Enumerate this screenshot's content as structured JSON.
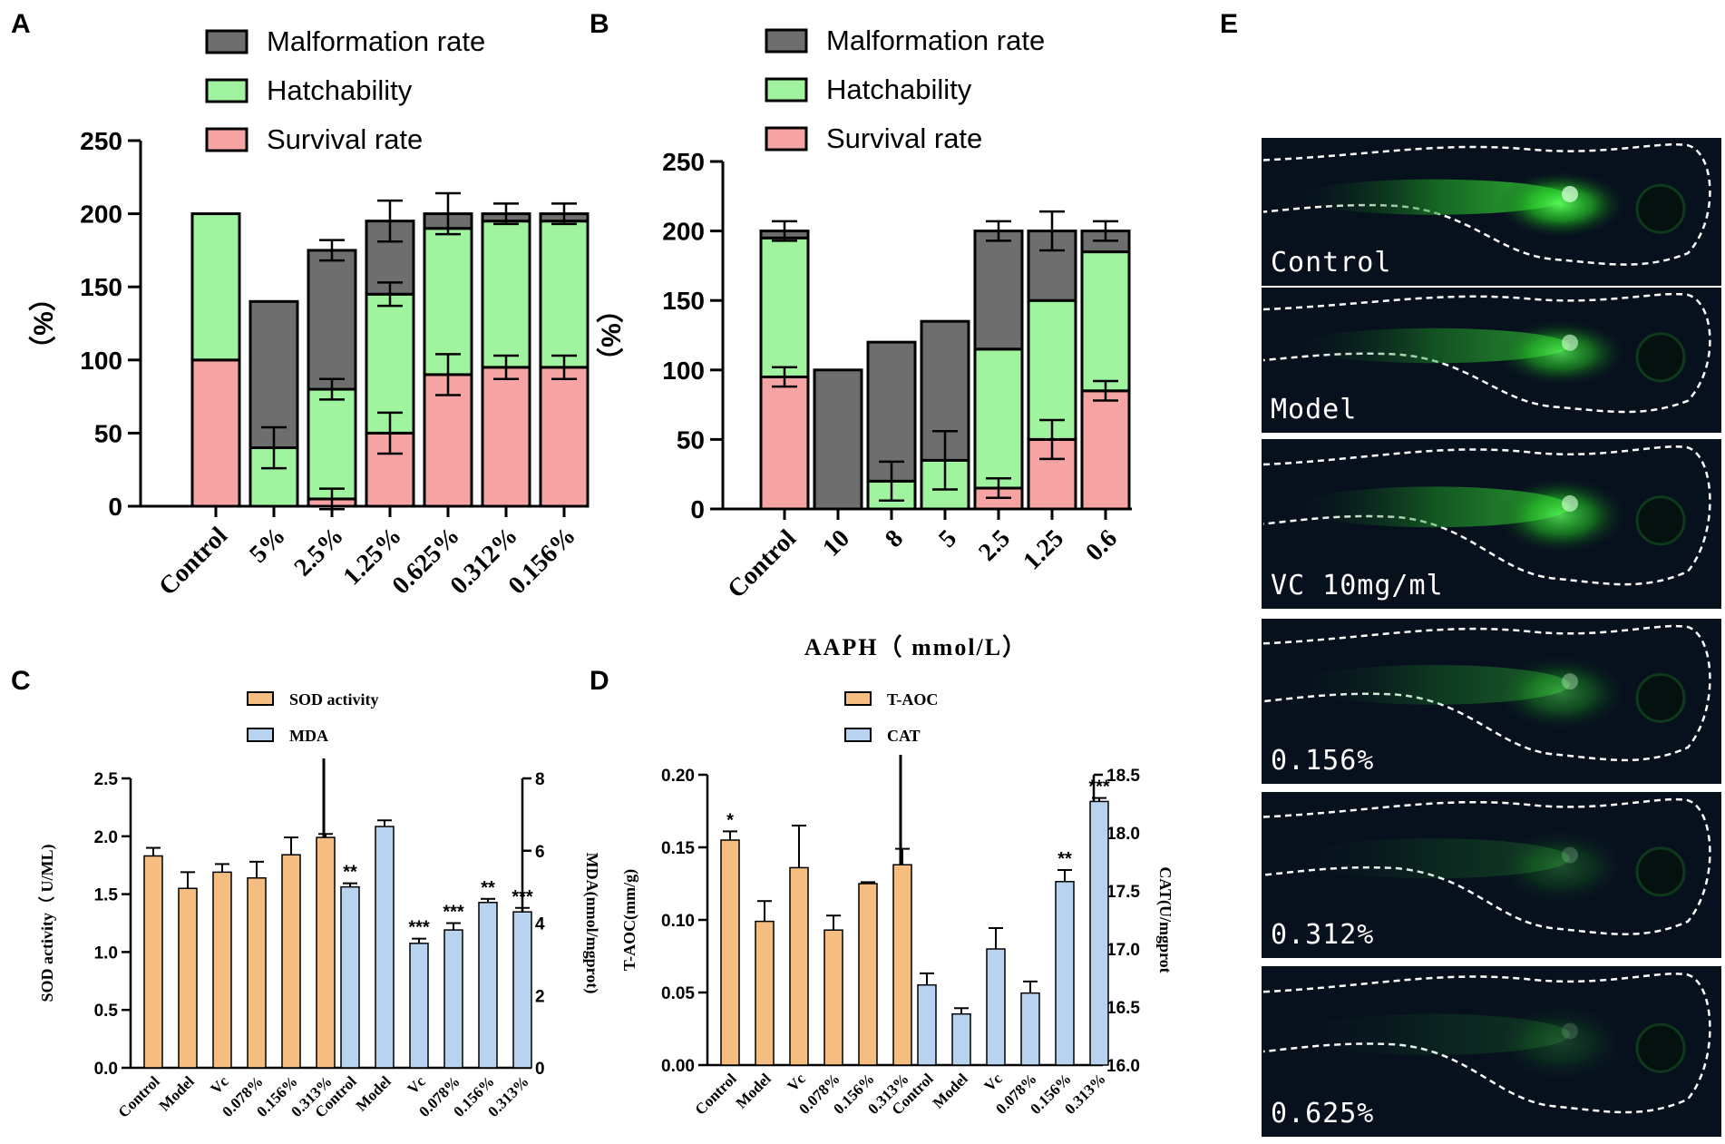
{
  "colors": {
    "gray": "#6e6e6e",
    "green": "#a0f4a0",
    "pink": "#f6a3a3",
    "orange": "#f5bd7f",
    "blue": "#b8d3f0",
    "fluor": "#2bdc2b",
    "dark": "#07111e"
  },
  "chart_data": [
    {
      "panel": "A",
      "type": "bar",
      "stacked": true,
      "categories": [
        "Control",
        "5%",
        "2.5%",
        "1.25%",
        "0.625%",
        "0.312%",
        "0.156%"
      ],
      "series": [
        {
          "name": "Survival rate",
          "values": [
            100,
            0,
            5,
            50,
            90,
            95,
            95
          ],
          "errors": [
            0,
            0,
            7,
            14,
            14,
            8,
            8
          ]
        },
        {
          "name": "Hatchability",
          "values": [
            100,
            40,
            75,
            95,
            100,
            100,
            100
          ],
          "errors": [
            0,
            14,
            7,
            8,
            0,
            0,
            0
          ]
        },
        {
          "name": "Malformation rate",
          "values": [
            0,
            100,
            95,
            50,
            10,
            5,
            5
          ],
          "errors": [
            0,
            0,
            7,
            14,
            14,
            7,
            7
          ]
        }
      ],
      "legend": [
        "Malformation rate",
        "Hatchability",
        "Survival rate"
      ],
      "ylabel": "（%）",
      "xlabel": "",
      "ylim": [
        0,
        250
      ],
      "yticks": [
        "0",
        "50",
        "100",
        "150",
        "200",
        "250"
      ]
    },
    {
      "panel": "B",
      "type": "bar",
      "stacked": true,
      "categories": [
        "Control",
        "10",
        "8",
        "5",
        "2.5",
        "1.25",
        "0.6"
      ],
      "series": [
        {
          "name": "Survival rate",
          "values": [
            95,
            0,
            0,
            0,
            15,
            50,
            85
          ],
          "errors": [
            7,
            0,
            0,
            0,
            7,
            14,
            7
          ]
        },
        {
          "name": "Hatchability",
          "values": [
            100,
            0,
            20,
            35,
            100,
            100,
            100
          ],
          "errors": [
            0,
            0,
            14,
            21,
            0,
            0,
            0
          ]
        },
        {
          "name": "Malformation rate",
          "values": [
            5,
            100,
            100,
            100,
            85,
            50,
            15
          ],
          "errors": [
            7,
            0,
            0,
            0,
            7,
            14,
            7
          ]
        }
      ],
      "legend": [
        "Malformation rate",
        "Hatchability",
        "Survival rate"
      ],
      "ylabel": "（%）",
      "xlabel": "AAPH（ mmol/L）",
      "ylim": [
        0,
        250
      ],
      "yticks": [
        "0",
        "50",
        "100",
        "150",
        "200",
        "250"
      ]
    },
    {
      "panel": "C",
      "type": "bar",
      "legend": [
        "SOD activity",
        "MDA"
      ],
      "left": {
        "name": "SOD activity",
        "categories": [
          "Control",
          "Model",
          "Vc",
          "0.078%",
          "0.156%",
          "0.313%"
        ],
        "values": [
          1.83,
          1.55,
          1.69,
          1.64,
          1.84,
          1.99
        ],
        "errors": [
          0.07,
          0.14,
          0.07,
          0.14,
          0.15,
          0.03
        ],
        "ylabel": "SOD activity（ U/ML)",
        "ylim": [
          0,
          2.5
        ],
        "yticks": [
          "0.0",
          "0.5",
          "1.0",
          "1.5",
          "2.0",
          "2.5"
        ]
      },
      "right": {
        "name": "MDA",
        "categories": [
          "Control",
          "Model",
          "Vc",
          "0.078%",
          "0.156%",
          "0.313%"
        ],
        "values": [
          5.0,
          6.67,
          3.44,
          3.81,
          4.57,
          4.31
        ],
        "errors": [
          0.1,
          0.17,
          0.13,
          0.19,
          0.1,
          0.11
        ],
        "sig": [
          "**",
          "",
          "***",
          "***",
          "**",
          "***"
        ],
        "ylabel": "MDA(nmol/mgprot)",
        "ylim": [
          0,
          8
        ],
        "yticks": [
          "0",
          "2",
          "4",
          "6",
          "8"
        ]
      }
    },
    {
      "panel": "D",
      "type": "bar",
      "legend": [
        "T-AOC",
        "CAT"
      ],
      "left": {
        "name": "T-AOC",
        "categories": [
          "Control",
          "Model",
          "Vc",
          "0.078%",
          "0.156%",
          "0.313%"
        ],
        "values": [
          0.155,
          0.099,
          0.136,
          0.093,
          0.125,
          0.138
        ],
        "errors": [
          0.006,
          0.014,
          0.029,
          0.01,
          0.001,
          0.011
        ],
        "sig": [
          "*",
          "",
          "",
          "",
          "",
          ""
        ],
        "ylabel": "T-AOC(mm/g)",
        "ylim": [
          0,
          0.2
        ],
        "yticks": [
          "0.00",
          "0.05",
          "0.10",
          "0.15",
          "0.20"
        ]
      },
      "right": {
        "name": "CAT",
        "categories": [
          "Control",
          "Model",
          "Vc",
          "0.078%",
          "0.156%",
          "0.313%"
        ],
        "values": [
          16.69,
          16.44,
          17.0,
          16.62,
          17.58,
          18.27
        ],
        "errors": [
          0.1,
          0.05,
          0.18,
          0.1,
          0.1,
          0.03
        ],
        "sig": [
          "",
          "",
          "",
          "",
          "**",
          "***"
        ],
        "ylabel": "CAT(U/mgprot",
        "ylim": [
          16.0,
          18.5
        ],
        "yticks": [
          "16.0",
          "16.5",
          "17.0",
          "17.5",
          "18.0",
          "18.5"
        ]
      }
    }
  ],
  "panels": {
    "labels": [
      "A",
      "B",
      "C",
      "D",
      "E"
    ],
    "images": {
      "labels": [
        "Control",
        "Model",
        "VC 10mg/ml",
        "0.156%",
        "0.312%",
        "0.625%"
      ],
      "brightness": [
        0.95,
        0.75,
        0.8,
        0.45,
        0.25,
        0.2
      ]
    }
  }
}
